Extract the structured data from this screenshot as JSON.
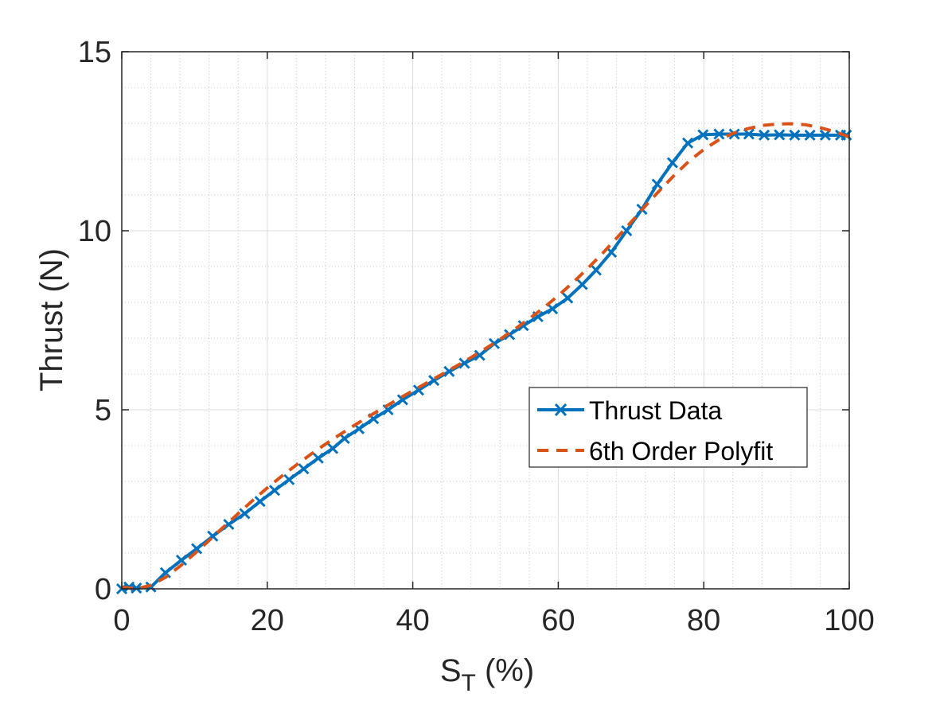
{
  "chart_data": {
    "type": "line",
    "xlabel_main": "S",
    "xlabel_sub": "T",
    "xlabel_rest": " (%)",
    "ylabel": "Thrust (N)",
    "xlim": [
      0,
      100
    ],
    "ylim": [
      0,
      15
    ],
    "xticks": [
      0,
      20,
      40,
      60,
      80,
      100
    ],
    "yticks": [
      0,
      5,
      10,
      15
    ],
    "grid": "major and minor",
    "legend_position": "center-right",
    "series": [
      {
        "name": "Thrust Data",
        "style": "solid",
        "marker": "x",
        "color": "#0072BD",
        "x": [
          0,
          1,
          2,
          4,
          6,
          8.2,
          10.3,
          12.5,
          14.7,
          16.9,
          19,
          21,
          23,
          25,
          27,
          29,
          30.6,
          32.6,
          34.6,
          36.6,
          38.6,
          40.8,
          42.9,
          45,
          47.1,
          49.2,
          51.2,
          53.3,
          55.2,
          57.2,
          59.2,
          61.3,
          63.3,
          65.2,
          67.3,
          69.4,
          71.5,
          73.6,
          75.7,
          77.8,
          79.9,
          82.1,
          84.2,
          86.2,
          88.3,
          90.4,
          92.5,
          94.6,
          96.7,
          98.8,
          99.6
        ],
        "y": [
          0,
          0.05,
          0.02,
          0.05,
          0.45,
          0.8,
          1.12,
          1.47,
          1.8,
          2.1,
          2.44,
          2.75,
          3.05,
          3.35,
          3.65,
          3.92,
          4.2,
          4.47,
          4.75,
          5.0,
          5.28,
          5.55,
          5.82,
          6.07,
          6.3,
          6.52,
          6.85,
          7.1,
          7.35,
          7.6,
          7.82,
          8.12,
          8.5,
          8.9,
          9.4,
          10.0,
          10.6,
          11.3,
          11.9,
          12.45,
          12.68,
          12.7,
          12.7,
          12.7,
          12.67,
          12.68,
          12.67,
          12.67,
          12.67,
          12.67,
          12.67
        ]
      },
      {
        "name": "6th Order Polyfit",
        "style": "dashed",
        "marker": "none",
        "color": "#D95319",
        "x": [
          0,
          2,
          4,
          6,
          8,
          10,
          12,
          14,
          16,
          18,
          20,
          22,
          24,
          26,
          28,
          30,
          32,
          34,
          36,
          38,
          40,
          42,
          44,
          46,
          48,
          50,
          52,
          54,
          56,
          58,
          60,
          62,
          64,
          66,
          68,
          70,
          72,
          74,
          76,
          78,
          80,
          82,
          84,
          86,
          88,
          90,
          92,
          94,
          96,
          98,
          100
        ],
        "y": [
          0.05,
          0.0,
          0.1,
          0.32,
          0.63,
          0.98,
          1.35,
          1.73,
          2.1,
          2.47,
          2.82,
          3.15,
          3.46,
          3.76,
          4.04,
          4.31,
          4.57,
          4.82,
          5.06,
          5.3,
          5.53,
          5.76,
          5.99,
          6.22,
          6.46,
          6.71,
          6.97,
          7.25,
          7.54,
          7.85,
          8.19,
          8.55,
          8.94,
          9.35,
          9.79,
          10.24,
          10.7,
          11.14,
          11.56,
          11.95,
          12.27,
          12.53,
          12.72,
          12.85,
          12.94,
          12.98,
          12.99,
          12.96,
          12.88,
          12.77,
          12.62
        ]
      }
    ]
  }
}
